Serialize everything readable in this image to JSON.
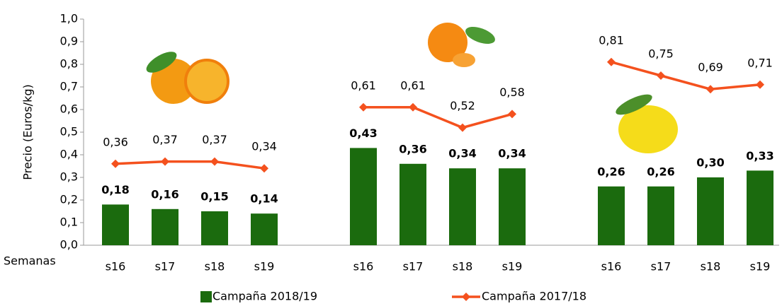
{
  "chart_data": {
    "type": "bar_line",
    "y_axis_label": "Precio (Euros/kg)",
    "x_axis_label": "Semanas",
    "categories": [
      "s16",
      "s17",
      "s18",
      "s19",
      null,
      "s16",
      "s17",
      "s18",
      "s19",
      null,
      "s16",
      "s17",
      "s18",
      "s19"
    ],
    "ylim": [
      0,
      1
    ],
    "yticks": [
      {
        "value": 0,
        "label": "0,0"
      },
      {
        "value": 0.1,
        "label": "0,1"
      },
      {
        "value": 0.2,
        "label": "0,2"
      },
      {
        "value": 0.3,
        "label": "0,3"
      },
      {
        "value": 0.4,
        "label": "0,4"
      },
      {
        "value": 0.5,
        "label": "0,5"
      },
      {
        "value": 0.6,
        "label": "0,6"
      },
      {
        "value": 0.7,
        "label": "0,7"
      },
      {
        "value": 0.8,
        "label": "0,8"
      },
      {
        "value": 0.9,
        "label": "0,9"
      },
      {
        "value": 1,
        "label": "1,0"
      }
    ],
    "series": [
      {
        "name": "Campaña 2018/19",
        "kind": "bar",
        "color": "#1b6b0e",
        "values": [
          0.18,
          0.16,
          0.15,
          0.14,
          null,
          0.43,
          0.36,
          0.34,
          0.34,
          null,
          0.26,
          0.26,
          0.3,
          0.33
        ],
        "value_labels": [
          "0,18",
          "0,16",
          "0,15",
          "0,14",
          null,
          "0,43",
          "0,36",
          "0,34",
          "0,34",
          null,
          "0,26",
          "0,26",
          "0,30",
          "0,33"
        ]
      },
      {
        "name": "Campaña 2017/18",
        "kind": "line",
        "color": "#f4511e",
        "values": [
          0.36,
          0.37,
          0.37,
          0.34,
          null,
          0.61,
          0.61,
          0.52,
          0.58,
          null,
          0.81,
          0.75,
          0.69,
          0.71
        ],
        "value_labels": [
          "0,36",
          "0,37",
          "0,37",
          "0,34",
          null,
          "0,61",
          "0,61",
          "0,52",
          "0,58",
          null,
          "0,81",
          "0,75",
          "0,69",
          "0,71"
        ]
      }
    ],
    "legend_position": "bottom"
  }
}
